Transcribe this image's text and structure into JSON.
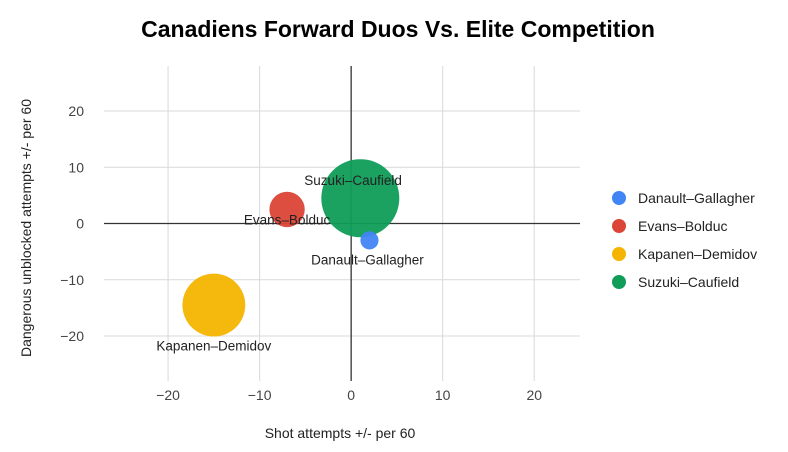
{
  "chart_data": {
    "type": "bubble",
    "title": "Canadiens Forward Duos Vs. Elite Competition",
    "xlabel": "Shot attempts +/- per 60",
    "ylabel": "Dangerous unblocked attempts +/- per 60",
    "xlim": [
      -27,
      25
    ],
    "ylim": [
      -28,
      28
    ],
    "xticks": [
      -20,
      -10,
      0,
      10,
      20
    ],
    "yticks": [
      -20,
      -10,
      0,
      10,
      20
    ],
    "xtick_labels": [
      "−20",
      "−10",
      "0",
      "10",
      "20"
    ],
    "ytick_labels": [
      "−20",
      "−10",
      "0",
      "10",
      "20"
    ],
    "grid": true,
    "legend_position": "right",
    "series": [
      {
        "name": "Danault–Gallagher",
        "x": 2,
        "y": -3,
        "size": 1,
        "color": "#4285F4",
        "label": "Danault–Gallagher",
        "label_pos": "below"
      },
      {
        "name": "Evans–Bolduc",
        "x": -7,
        "y": 2.5,
        "size": 3.8,
        "color": "#DB4437",
        "label": "Evans–Bolduc",
        "label_pos": "below"
      },
      {
        "name": "Kapanen–Demidov",
        "x": -15,
        "y": -14.5,
        "size": 12,
        "color": "#F4B400",
        "label": "Kapanen–Demidov",
        "label_pos": "below"
      },
      {
        "name": "Suzuki–Caufield",
        "x": 1,
        "y": 4.5,
        "size": 18.5,
        "color": "#0F9D58",
        "label": "Suzuki–Caufield",
        "label_pos": "right"
      }
    ]
  }
}
